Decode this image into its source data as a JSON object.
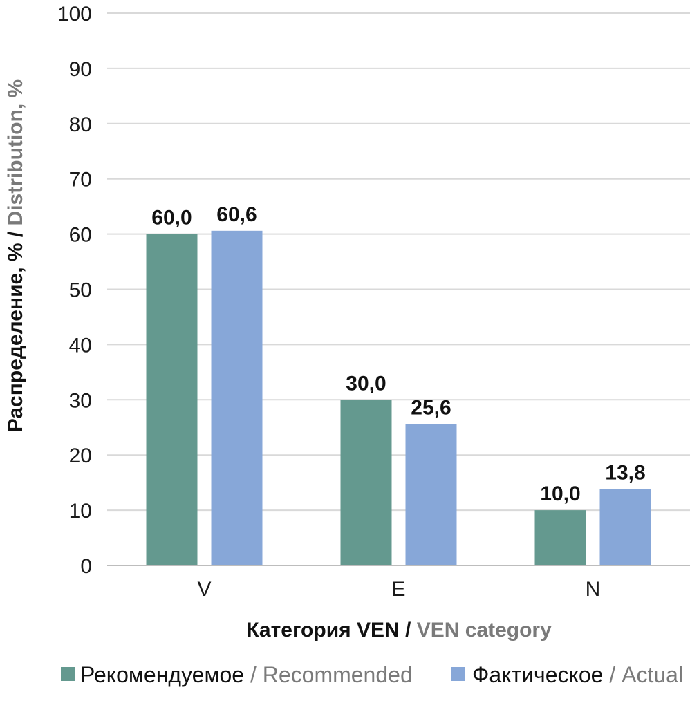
{
  "chart_data": {
    "type": "bar",
    "categories": [
      "V",
      "E",
      "N"
    ],
    "series": [
      {
        "name": "Рекомендуемое / Recommended",
        "name_ru": "Рекомендуемое",
        "name_en": "Recommended",
        "color": "#64998f",
        "values": [
          60.0,
          30.0,
          10.0
        ],
        "labels": [
          "60,0",
          "30,0",
          "10,0"
        ]
      },
      {
        "name": "Фактическое / Actual",
        "name_ru": "Фактическое",
        "name_en": "Actual",
        "color": "#87a7d8",
        "values": [
          60.6,
          25.6,
          13.8
        ],
        "labels": [
          "60,6",
          "25,6",
          "13,8"
        ]
      }
    ],
    "xlabel": "Категория VEN / VEN category",
    "xlabel_ru": "Категория VEN",
    "xlabel_en": "VEN category",
    "ylabel": "Распределение, % / Distribution, %",
    "ylabel_ru": "Распределение, %",
    "ylabel_en": "Distribution, %",
    "ylim": [
      0,
      100
    ],
    "yticks": [
      0,
      10,
      20,
      30,
      40,
      50,
      60,
      70,
      80,
      90,
      100
    ],
    "grid": true,
    "legend_position": "bottom"
  }
}
